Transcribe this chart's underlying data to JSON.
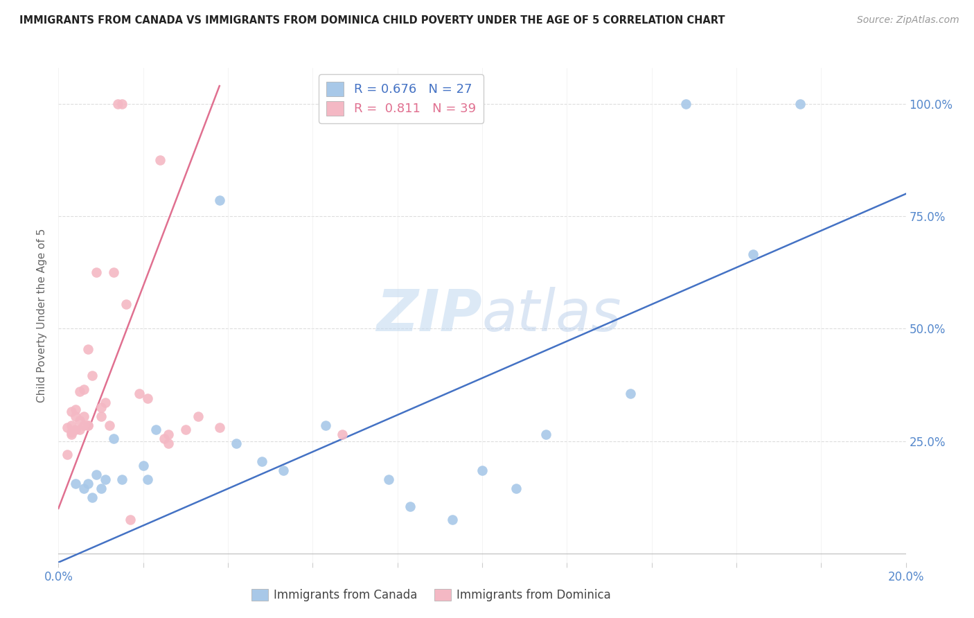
{
  "title": "IMMIGRANTS FROM CANADA VS IMMIGRANTS FROM DOMINICA CHILD POVERTY UNDER THE AGE OF 5 CORRELATION CHART",
  "source": "Source: ZipAtlas.com",
  "ylabel": "Child Poverty Under the Age of 5",
  "xlim": [
    0.0,
    0.2
  ],
  "ylim": [
    -0.02,
    1.08
  ],
  "ytick_values": [
    0.25,
    0.5,
    0.75,
    1.0
  ],
  "ytick_labels": [
    "25.0%",
    "50.0%",
    "75.0%",
    "100.0%"
  ],
  "xtick_values": [
    0.0,
    0.02,
    0.04,
    0.06,
    0.08,
    0.1,
    0.12,
    0.14,
    0.16,
    0.18,
    0.2
  ],
  "canada_color": "#a8c8e8",
  "dominica_color": "#f4b8c4",
  "canada_line_color": "#4472c4",
  "dominica_line_color": "#e07090",
  "canada_R": 0.676,
  "canada_N": 27,
  "dominica_R": 0.811,
  "dominica_N": 39,
  "background_color": "#ffffff",
  "canada_x": [
    0.004,
    0.006,
    0.007,
    0.008,
    0.009,
    0.01,
    0.011,
    0.013,
    0.015,
    0.02,
    0.021,
    0.023,
    0.038,
    0.042,
    0.048,
    0.053,
    0.063,
    0.078,
    0.083,
    0.093,
    0.1,
    0.108,
    0.115,
    0.135,
    0.148,
    0.164,
    0.175
  ],
  "canada_y": [
    0.155,
    0.145,
    0.155,
    0.125,
    0.175,
    0.145,
    0.165,
    0.255,
    0.165,
    0.195,
    0.165,
    0.275,
    0.785,
    0.245,
    0.205,
    0.185,
    0.285,
    0.165,
    0.105,
    0.075,
    0.185,
    0.145,
    0.265,
    0.355,
    1.0,
    0.665,
    1.0
  ],
  "dominica_x": [
    0.002,
    0.002,
    0.003,
    0.003,
    0.003,
    0.003,
    0.004,
    0.004,
    0.004,
    0.005,
    0.005,
    0.005,
    0.006,
    0.006,
    0.006,
    0.007,
    0.007,
    0.007,
    0.008,
    0.009,
    0.01,
    0.01,
    0.011,
    0.012,
    0.013,
    0.014,
    0.015,
    0.016,
    0.017,
    0.019,
    0.021,
    0.024,
    0.025,
    0.026,
    0.026,
    0.03,
    0.033,
    0.038,
    0.067
  ],
  "dominica_y": [
    0.28,
    0.22,
    0.315,
    0.285,
    0.265,
    0.27,
    0.32,
    0.305,
    0.275,
    0.36,
    0.295,
    0.275,
    0.365,
    0.305,
    0.285,
    0.285,
    0.455,
    0.285,
    0.395,
    0.625,
    0.305,
    0.325,
    0.335,
    0.285,
    0.625,
    1.0,
    1.0,
    0.555,
    0.075,
    0.355,
    0.345,
    0.875,
    0.255,
    0.265,
    0.245,
    0.275,
    0.305,
    0.28,
    0.265
  ],
  "canada_line_x": [
    0.0,
    0.2
  ],
  "canada_line_y": [
    -0.02,
    0.8
  ],
  "dominica_line_x": [
    0.0,
    0.038
  ],
  "dominica_line_y": [
    0.1,
    1.04
  ]
}
